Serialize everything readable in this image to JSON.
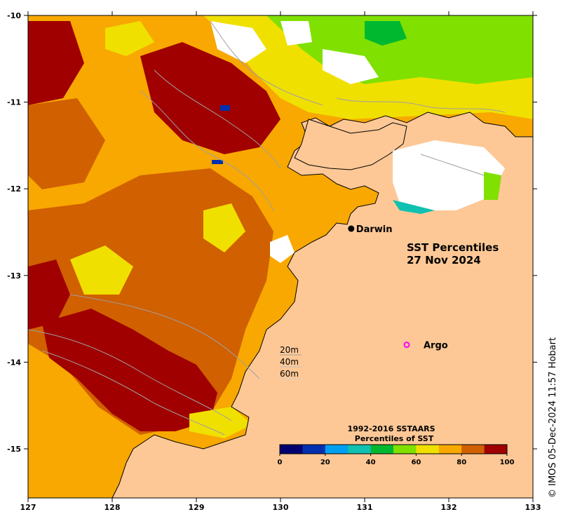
{
  "map": {
    "title_line1": "SST Percentiles",
    "title_line2": "27 Nov 2024",
    "credit": "© IMOS 05-Dec-2024 11:57 Hobart",
    "lon_ticks": [
      "127",
      "128",
      "129",
      "130",
      "131",
      "132",
      "133"
    ],
    "lat_ticks": [
      "-10",
      "-11",
      "-12",
      "-13",
      "-14",
      "-15"
    ],
    "places": [
      {
        "name": "Darwin",
        "lon": 130.84,
        "lat": -12.46,
        "marker": "dot"
      },
      {
        "name": "Argo",
        "lon": 131.5,
        "lat": -13.8,
        "marker": "ring"
      }
    ],
    "depth_legend": [
      "20m",
      "40m",
      "60m"
    ],
    "colorbar": {
      "title_line1": "1992-2016 SSTAARS",
      "title_line2": "Percentiles of SST",
      "ticks": [
        "0",
        "20",
        "40",
        "60",
        "80",
        "100"
      ],
      "colors": [
        "#000070",
        "#0030b0",
        "#00a0f0",
        "#10c0b0",
        "#00b830",
        "#80e000",
        "#f0e000",
        "#f8a800",
        "#d06000",
        "#a00000"
      ]
    },
    "land_color": "#fdc896",
    "marker_colors": {
      "darwin": "#000000",
      "argo": "#ff00ff"
    }
  }
}
